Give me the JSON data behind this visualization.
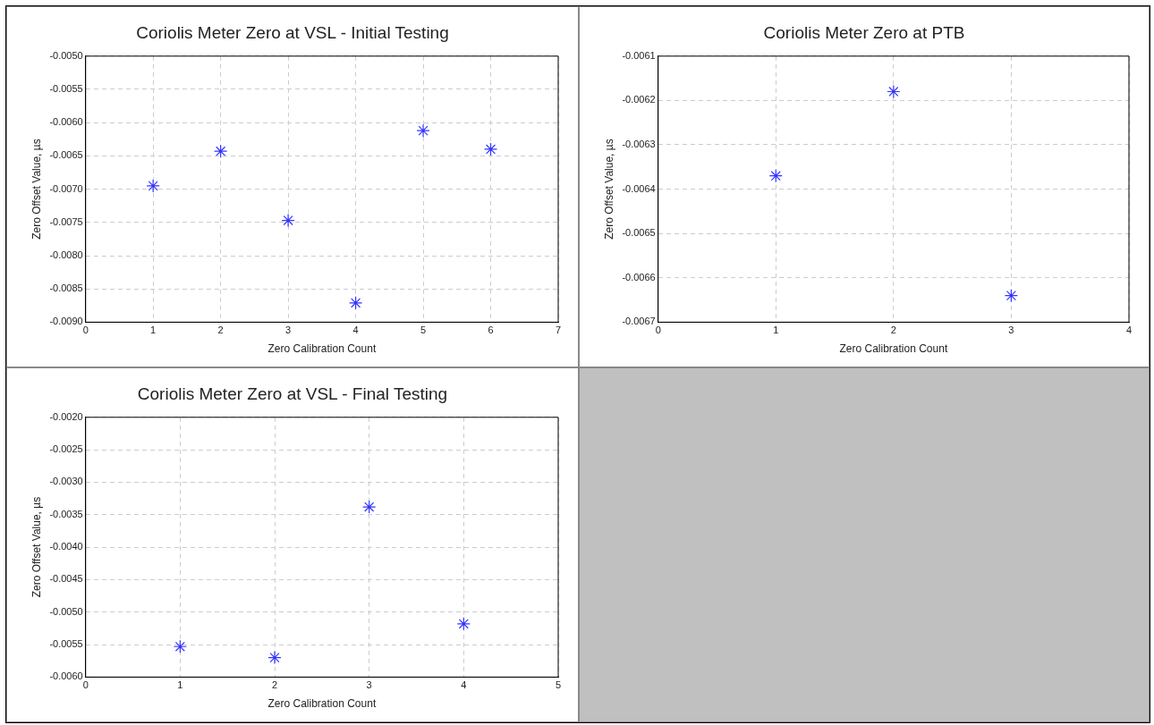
{
  "chart_data": [
    {
      "type": "scatter",
      "title": "Coriolis Meter Zero at VSL - Initial Testing",
      "xlabel": "Zero Calibration Count",
      "ylabel": "Zero Offset Value, µs",
      "marker": "cross",
      "grid": true,
      "legend": false,
      "series": [
        {
          "color": "#3333ff",
          "x": [
            1,
            2,
            3,
            4,
            5,
            6
          ],
          "values": [
            -0.00695,
            -0.00643,
            -0.00747,
            -0.00871,
            -0.00612,
            -0.0064
          ]
        }
      ],
      "xlim": [
        0,
        7
      ],
      "xticks": [
        0,
        1,
        2,
        3,
        4,
        5,
        6,
        7
      ],
      "ylim": [
        -0.009,
        -0.005
      ],
      "yticks": [
        {
          "value": -0.009,
          "label": "-0.0090"
        },
        {
          "value": -0.0085,
          "label": "-0.0085"
        },
        {
          "value": -0.008,
          "label": "-0.0080"
        },
        {
          "value": -0.0075,
          "label": "-0.0075"
        },
        {
          "value": -0.007,
          "label": "-0.0070"
        },
        {
          "value": -0.0065,
          "label": "-0.0065"
        },
        {
          "value": -0.006,
          "label": "-0.0060"
        },
        {
          "value": -0.0055,
          "label": "-0.0055"
        },
        {
          "value": -0.005,
          "label": "-0.0050"
        }
      ]
    },
    {
      "type": "scatter",
      "title": "Coriolis Meter Zero at PTB",
      "xlabel": "Zero Calibration Count",
      "ylabel": "Zero Offset Value, µs",
      "marker": "cross",
      "grid": true,
      "legend": false,
      "series": [
        {
          "color": "#3333ff",
          "x": [
            1,
            2,
            3
          ],
          "values": [
            -0.00637,
            -0.00618,
            -0.00664
          ]
        }
      ],
      "xlim": [
        0,
        4
      ],
      "xticks": [
        0,
        1,
        2,
        3,
        4
      ],
      "ylim": [
        -0.0067,
        -0.0061
      ],
      "yticks": [
        -0.0067,
        -0.0066,
        -0.0065,
        -0.0064,
        -0.0063,
        -0.0062,
        -0.0061
      ]
    },
    {
      "type": "scatter",
      "title": "Coriolis Meter Zero at VSL - Final Testing",
      "xlabel": "Zero Calibration Count",
      "ylabel": "Zero Offset Value, µs",
      "marker": "cross",
      "grid": true,
      "legend": false,
      "series": [
        {
          "color": "#3333ff",
          "x": [
            1,
            2,
            3,
            4
          ],
          "values": [
            -0.00553,
            -0.0057,
            -0.00338,
            -0.00518
          ]
        }
      ],
      "xlim": [
        0,
        5
      ],
      "xticks": [
        0,
        1,
        2,
        3,
        4,
        5
      ],
      "ylim": [
        -0.006,
        -0.002
      ],
      "yticks": [
        {
          "value": -0.006,
          "label": "-0.0060"
        },
        {
          "value": -0.0055,
          "label": "-0.0055"
        },
        {
          "value": -0.005,
          "label": "-0.0050"
        },
        {
          "value": -0.0045,
          "label": "-0.0045"
        },
        {
          "value": -0.004,
          "label": "-0.0040"
        },
        {
          "value": -0.0035,
          "label": "-0.0035"
        },
        {
          "value": -0.003,
          "label": "-0.0030"
        },
        {
          "value": -0.0025,
          "label": "-0.0025"
        },
        {
          "value": -0.002,
          "label": "-0.0020"
        }
      ]
    }
  ]
}
